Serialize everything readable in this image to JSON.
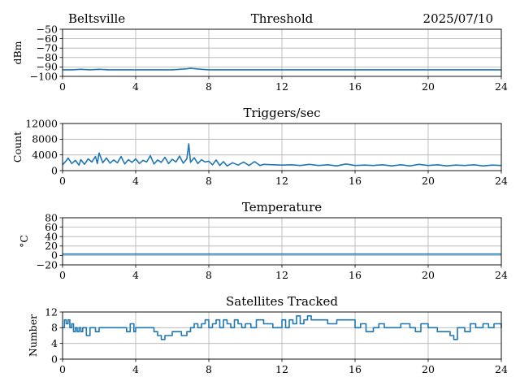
{
  "header": {
    "location": "Beltsville",
    "date": "2025/07/10"
  },
  "colors": {
    "line": "#1f77b4",
    "grid": "#b0b0b0"
  },
  "chart_data": [
    {
      "type": "line",
      "title": "Threshold",
      "ylabel": "dBm",
      "xlim": [
        0,
        24
      ],
      "ylim": [
        -100,
        -50
      ],
      "xticks": [
        0,
        4,
        8,
        12,
        16,
        20,
        24
      ],
      "yticks": [
        -100,
        -90,
        -80,
        -70,
        -60,
        -50
      ],
      "ytick_labels": [
        "−100",
        "−90",
        "−80",
        "−70",
        "−60",
        "−50"
      ],
      "grid": true,
      "series": [
        {
          "x": [
            0,
            0.5,
            1.0,
            1.5,
            2.0,
            2.5,
            3.0,
            4.0,
            5.0,
            6.0,
            6.8,
            7.0,
            7.3,
            7.6,
            8.0,
            9.0,
            10.0,
            11.0,
            12.0,
            14.0,
            16.0,
            18.0,
            20.0,
            22.0,
            24.0
          ],
          "y": [
            -93,
            -93,
            -92.5,
            -93,
            -92.5,
            -93,
            -93,
            -93,
            -93,
            -93,
            -92,
            -91.5,
            -92,
            -92.5,
            -93,
            -93,
            -93,
            -93,
            -93,
            -93,
            -93,
            -93,
            -93,
            -93,
            -93
          ]
        }
      ]
    },
    {
      "type": "line",
      "title": "Triggers/sec",
      "ylabel": "Count",
      "xlim": [
        0,
        24
      ],
      "ylim": [
        0,
        12000
      ],
      "xticks": [
        0,
        4,
        8,
        12,
        16,
        20,
        24
      ],
      "yticks": [
        0,
        4000,
        8000,
        12000
      ],
      "ytick_labels": [
        "0",
        "4000",
        "8000",
        "12000"
      ],
      "grid": true,
      "series": [
        {
          "x": [
            0,
            0.2,
            0.3,
            0.5,
            0.7,
            0.9,
            1.0,
            1.2,
            1.4,
            1.6,
            1.8,
            1.9,
            2.0,
            2.2,
            2.4,
            2.6,
            2.8,
            3.0,
            3.2,
            3.4,
            3.6,
            3.8,
            4.0,
            4.2,
            4.4,
            4.6,
            4.8,
            5.0,
            5.2,
            5.4,
            5.6,
            5.8,
            6.0,
            6.2,
            6.4,
            6.6,
            6.8,
            6.9,
            7.0,
            7.2,
            7.4,
            7.6,
            7.8,
            8.0,
            8.2,
            8.4,
            8.6,
            8.8,
            9.0,
            9.3,
            9.6,
            9.9,
            10.2,
            10.5,
            10.8,
            11.0,
            11.5,
            12.0,
            12.5,
            13.0,
            13.5,
            14.0,
            14.5,
            15.0,
            15.5,
            16.0,
            16.5,
            17.0,
            17.5,
            18.0,
            18.5,
            19.0,
            19.5,
            20.0,
            20.5,
            21.0,
            21.5,
            22.0,
            22.5,
            23.0,
            23.5,
            24.0
          ],
          "y": [
            1500,
            2500,
            3200,
            1800,
            2600,
            1400,
            2800,
            1600,
            3000,
            2200,
            3600,
            1800,
            4500,
            2000,
            3200,
            1900,
            2700,
            2000,
            3600,
            1700,
            2800,
            2100,
            3000,
            1800,
            2600,
            2200,
            3800,
            1700,
            2700,
            2100,
            3400,
            1800,
            2900,
            2200,
            3700,
            1900,
            3000,
            6800,
            2100,
            3300,
            1800,
            2800,
            2200,
            2400,
            1500,
            2700,
            1300,
            2300,
            1200,
            2000,
            1400,
            2200,
            1300,
            2300,
            1300,
            1600,
            1500,
            1400,
            1500,
            1300,
            1600,
            1300,
            1500,
            1200,
            1700,
            1300,
            1400,
            1300,
            1500,
            1200,
            1500,
            1200,
            1600,
            1300,
            1500,
            1200,
            1400,
            1300,
            1500,
            1200,
            1400,
            1300
          ]
        }
      ]
    },
    {
      "type": "line",
      "title": "Temperature",
      "ylabel": "°C",
      "xlim": [
        0,
        24
      ],
      "ylim": [
        -20,
        80
      ],
      "xticks": [
        0,
        4,
        8,
        12,
        16,
        20,
        24
      ],
      "yticks": [
        -20,
        0,
        20,
        40,
        60,
        80
      ],
      "ytick_labels": [
        "−20",
        "0",
        "20",
        "40",
        "60",
        "80"
      ],
      "grid": true,
      "series": [
        {
          "x": [
            0,
            24
          ],
          "y": [
            3,
            3
          ]
        }
      ]
    },
    {
      "type": "line",
      "title": "Satellites Tracked",
      "ylabel": "Number",
      "xlim": [
        0,
        24
      ],
      "ylim": [
        0,
        12
      ],
      "xticks": [
        0,
        4,
        8,
        12,
        16,
        20,
        24
      ],
      "yticks": [
        0,
        4,
        8,
        12
      ],
      "ytick_labels": [
        "0",
        "4",
        "8",
        "12"
      ],
      "grid": true,
      "step": true,
      "series": [
        {
          "x": [
            0,
            0.1,
            0.2,
            0.3,
            0.4,
            0.5,
            0.6,
            0.7,
            0.8,
            0.9,
            1.0,
            1.1,
            1.3,
            1.5,
            1.8,
            2.0,
            2.5,
            3.0,
            3.5,
            3.7,
            3.9,
            4.0,
            4.5,
            5.0,
            5.2,
            5.4,
            5.6,
            6.0,
            6.5,
            6.8,
            7.0,
            7.2,
            7.4,
            7.6,
            7.8,
            8.0,
            8.2,
            8.4,
            8.6,
            8.8,
            9.0,
            9.2,
            9.4,
            9.6,
            9.8,
            10.0,
            10.3,
            10.6,
            11.0,
            11.5,
            12.0,
            12.2,
            12.4,
            12.6,
            12.8,
            13.0,
            13.2,
            13.4,
            13.6,
            14.0,
            14.5,
            15.0,
            15.5,
            16.0,
            16.3,
            16.6,
            17.0,
            17.3,
            17.6,
            18.0,
            18.5,
            19.0,
            19.3,
            19.6,
            20.0,
            20.5,
            21.0,
            21.2,
            21.4,
            21.6,
            22.0,
            22.3,
            22.6,
            23.0,
            23.3,
            23.6,
            24.0
          ],
          "y": [
            8,
            10,
            9,
            10,
            8,
            9,
            7,
            8,
            7,
            8,
            7,
            8,
            6,
            8,
            7,
            8,
            8,
            8,
            7,
            9,
            7,
            8,
            8,
            7,
            6,
            5,
            6,
            7,
            6,
            7,
            8,
            9,
            8,
            9,
            10,
            8,
            9,
            10,
            8,
            10,
            9,
            8,
            10,
            9,
            8,
            9,
            8,
            10,
            9,
            8,
            10,
            8,
            10,
            9,
            11,
            9,
            10,
            11,
            10,
            10,
            9,
            10,
            10,
            8,
            9,
            7,
            8,
            9,
            8,
            8,
            9,
            8,
            7,
            9,
            8,
            7,
            7,
            6,
            5,
            8,
            7,
            9,
            8,
            9,
            8,
            9,
            8
          ]
        }
      ]
    }
  ]
}
